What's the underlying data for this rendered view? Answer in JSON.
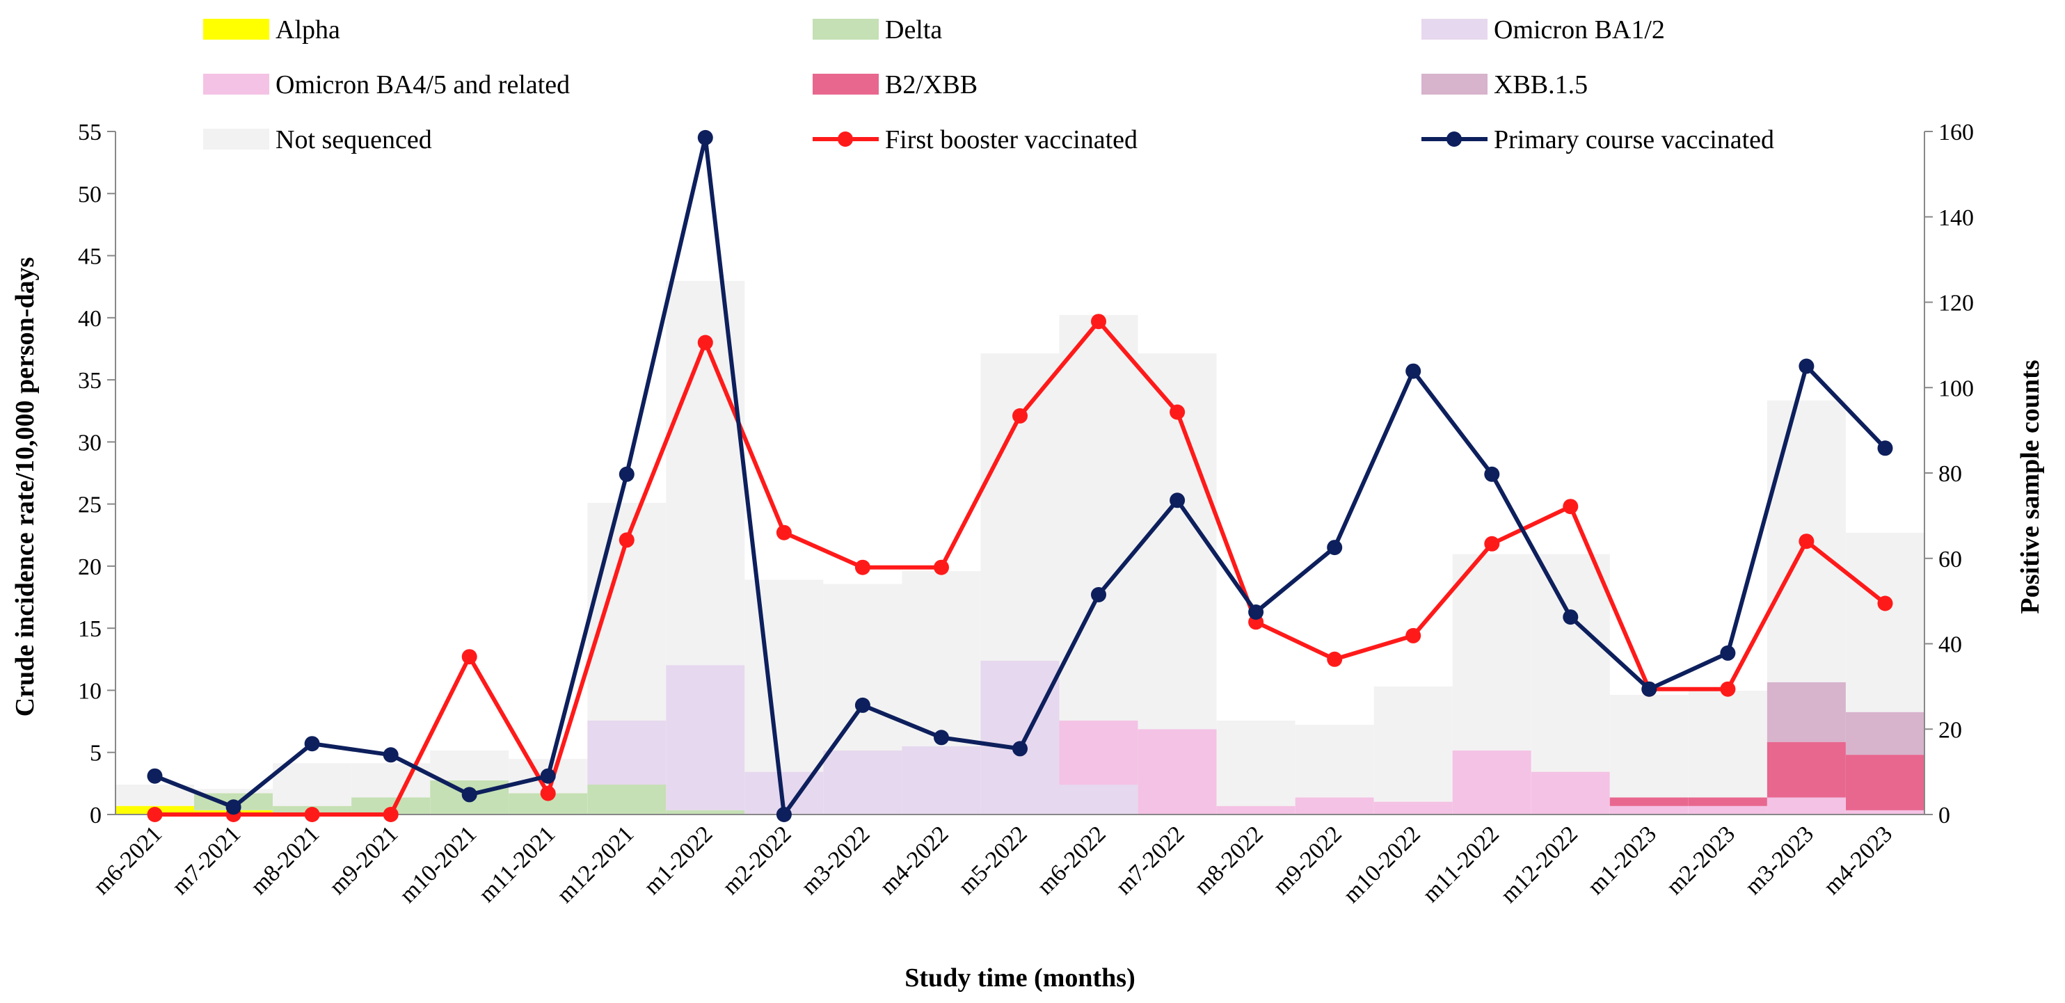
{
  "chart_data": {
    "type": "bar+line",
    "xlabel": "Study time (months)",
    "ylabel": "Crude incidence rate/10,000 person-days",
    "y2label": "Positive sample counts",
    "ylim": [
      0,
      55
    ],
    "y2lim": [
      0,
      160
    ],
    "yticks": [
      "0",
      "5",
      "10",
      "15",
      "20",
      "25",
      "30",
      "35",
      "40",
      "45",
      "50",
      "55"
    ],
    "y2ticks": [
      "0",
      "20",
      "40",
      "60",
      "80",
      "100",
      "120",
      "140",
      "160"
    ],
    "categories": [
      "m6-2021",
      "m7-2021",
      "m8-2021",
      "m9-2021",
      "m10-2021",
      "m11-2021",
      "m12-2021",
      "m1-2022",
      "m2-2022",
      "m3-2022",
      "m4-2022",
      "m5-2022",
      "m6-2022",
      "m7-2022",
      "m8-2022",
      "m9-2022",
      "m10-2022",
      "m11-2022",
      "m12-2022",
      "m1-2023",
      "m2-2023",
      "m3-2023",
      "m4-2023"
    ],
    "bar_series": [
      {
        "name": "Alpha",
        "color": "#ffff00",
        "values": [
          2,
          1,
          0,
          0,
          0,
          0,
          0,
          0,
          0,
          0,
          0,
          0,
          0,
          0,
          0,
          0,
          0,
          0,
          0,
          0,
          0,
          0,
          0
        ]
      },
      {
        "name": "Delta",
        "color": "#c5e0b4",
        "values": [
          0,
          4,
          2,
          4,
          8,
          5,
          7,
          1,
          0,
          0,
          0,
          0,
          0,
          0,
          0,
          0,
          0,
          0,
          0,
          0,
          0,
          0,
          0
        ]
      },
      {
        "name": "Omicron BA1/2",
        "color": "#e6d8ee",
        "values": [
          0,
          0,
          0,
          0,
          0,
          0,
          15,
          34,
          10,
          15,
          16,
          36,
          7,
          0,
          0,
          0,
          0,
          0,
          0,
          0,
          0,
          0,
          0
        ]
      },
      {
        "name": "Omicron BA4/5 and related",
        "color": "#f4c2e4",
        "values": [
          0,
          0,
          0,
          0,
          0,
          0,
          0,
          0,
          0,
          0,
          0,
          0,
          15,
          20,
          2,
          4,
          3,
          15,
          10,
          2,
          2,
          4,
          1
        ]
      },
      {
        "name": "B2/XBB",
        "color": "#e8678f",
        "values": [
          0,
          0,
          0,
          0,
          0,
          0,
          0,
          0,
          0,
          0,
          0,
          0,
          0,
          0,
          0,
          0,
          0,
          0,
          0,
          2,
          2,
          13,
          13
        ]
      },
      {
        "name": "XBB.1.5",
        "color": "#d7b3cc",
        "values": [
          0,
          0,
          0,
          0,
          0,
          0,
          0,
          0,
          0,
          0,
          0,
          0,
          0,
          0,
          0,
          0,
          0,
          0,
          0,
          0,
          0,
          14,
          10
        ]
      },
      {
        "name": "Not sequenced",
        "color": "#f2f2f2",
        "values": [
          5,
          1,
          10,
          8,
          7,
          8,
          51,
          90,
          45,
          39,
          41,
          72,
          95,
          88,
          20,
          17,
          27,
          46,
          51,
          24,
          25,
          66,
          42
        ]
      }
    ],
    "line_series": [
      {
        "name": "First booster vaccinated",
        "color": "#ff1a1a",
        "values": [
          0,
          0,
          0,
          0,
          12.7,
          1.7,
          22.1,
          38,
          22.7,
          19.9,
          19.9,
          32.1,
          39.7,
          32.4,
          15.5,
          12.5,
          14.4,
          21.8,
          24.8,
          10.1,
          10.1,
          22,
          17
        ]
      },
      {
        "name": "Primary course vaccinated",
        "color": "#0d1f5c",
        "values": [
          3.1,
          0.6,
          5.7,
          4.8,
          1.6,
          3.1,
          27.4,
          54.5,
          0,
          8.8,
          6.2,
          5.3,
          17.7,
          25.3,
          16.3,
          21.5,
          35.7,
          27.4,
          15.9,
          10.1,
          13,
          36.1,
          29.5
        ]
      }
    ],
    "legend": {
      "placement": "top",
      "columns": 3
    }
  }
}
